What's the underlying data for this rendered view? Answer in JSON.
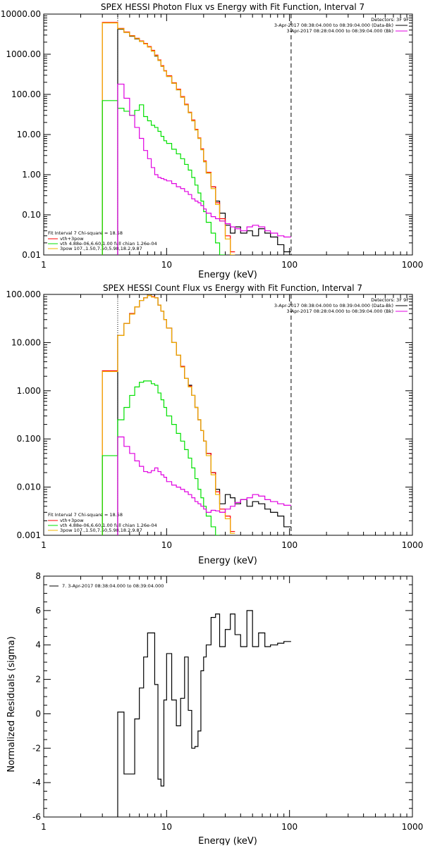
{
  "colors": {
    "background": "#ffffff",
    "axes": "#000000",
    "data": "#000000",
    "vth_spow": "#ff0000",
    "vth": "#00e000",
    "spow": "#f0b400",
    "background_spectrum": "#e000e0"
  },
  "chart_data": [
    {
      "type": "line",
      "title": "SPEX HESSI Photon Flux vs Energy with Fit Function, Interval 7",
      "xlabel": "Energy (keV)",
      "ylabel": "",
      "xscale": "log",
      "yscale": "log",
      "xlim": [
        1,
        1000
      ],
      "ylim": [
        0.01,
        10000
      ],
      "xticks": [
        {
          "v": 1,
          "label": "1"
        },
        {
          "v": 10,
          "label": "10"
        },
        {
          "v": 100,
          "label": "100"
        },
        {
          "v": 1000,
          "label": "1000"
        }
      ],
      "yticks": [
        {
          "v": 0.01,
          "label": "0.01"
        },
        {
          "v": 0.1,
          "label": "0.10"
        },
        {
          "v": 1,
          "label": "1.00"
        },
        {
          "v": 10,
          "label": "10.00"
        },
        {
          "v": 100,
          "label": "100.00"
        },
        {
          "v": 1000,
          "label": "1000.00"
        },
        {
          "v": 10000,
          "label": "10000.00"
        }
      ],
      "vlines": [
        {
          "x": 4,
          "style": "dotted"
        },
        {
          "x": 103,
          "style": "dashed"
        }
      ],
      "legend_top": {
        "position": "top-right",
        "header": "Detectors: 3F 9F",
        "entries": [
          {
            "label": "3-Apr-2017 08:38:04.000 to 08:39:04.000 (Data-Bk)",
            "color": "#000000"
          },
          {
            "label": "3-Apr-2017 08:28:04.000 to 08:39:04.000 (Bk)",
            "color": "#e000e0"
          }
        ]
      },
      "legend_bottom": {
        "position": "bottom-left",
        "header": "Fit Interval 7   Chi-square = 18.58",
        "entries": [
          {
            "label": "vth+3pow",
            "color": "#ff0000"
          },
          {
            "label": "vth 4.88e-06,6.60,1.00  full chian 1.26e-04",
            "color": "#00e000"
          },
          {
            "label": "3pow 107.,1.50,7.50,5.98,18.2,9.87",
            "color": "#f0b400"
          }
        ]
      },
      "edges": [
        3,
        4,
        4.5,
        5,
        5.5,
        6,
        6.5,
        7,
        7.5,
        8,
        8.5,
        9,
        9.5,
        10,
        11,
        12,
        13,
        14,
        15,
        16,
        17,
        18,
        19,
        20,
        21,
        23,
        25,
        27,
        30,
        33,
        36,
        40,
        45,
        50,
        56,
        63,
        70,
        80,
        90,
        103
      ],
      "series": [
        {
          "name": "Data-Bk",
          "color": "#000000",
          "width": 1.2,
          "values": [
            null,
            4200,
            3500,
            2800,
            2400,
            2100,
            1800,
            1500,
            1200,
            900,
            700,
            500,
            380,
            280,
            190,
            130,
            85,
            55,
            35,
            22,
            13,
            8,
            4.2,
            2.1,
            1.1,
            0.5,
            0.22,
            0.11,
            0.055,
            0.035,
            0.05,
            0.035,
            0.04,
            0.03,
            0.045,
            0.035,
            0.028,
            0.018,
            0.012
          ]
        },
        {
          "name": "vth+3pow",
          "color": "#ff0000",
          "width": 1.2,
          "values": [
            6200,
            4400,
            3600,
            2900,
            2500,
            2150,
            1850,
            1550,
            1250,
            950,
            720,
            520,
            390,
            290,
            195,
            135,
            88,
            57,
            36,
            23,
            13.5,
            8.2,
            4.4,
            2.2,
            1.15,
            0.5,
            0.2,
            0.08,
            0.03,
            0.012,
            null,
            null,
            null,
            null,
            null,
            null,
            null,
            null,
            null
          ]
        },
        {
          "name": "3pow",
          "color": "#f0b400",
          "width": 1.2,
          "values": [
            6000,
            4300,
            3500,
            2850,
            2450,
            2100,
            1800,
            1500,
            1200,
            920,
            700,
            500,
            380,
            280,
            190,
            130,
            85,
            55,
            35,
            22,
            13,
            8,
            4.2,
            2.1,
            1.1,
            0.45,
            0.18,
            0.07,
            0.025,
            0.01,
            null,
            null,
            null,
            null,
            null,
            null,
            null,
            null,
            null
          ]
        },
        {
          "name": "vth",
          "color": "#00e000",
          "width": 1.2,
          "values": [
            70,
            45,
            38,
            30,
            40,
            55,
            28,
            22,
            17,
            15,
            12,
            9,
            7,
            6,
            4.3,
            3.3,
            2.5,
            1.8,
            1.3,
            0.85,
            0.55,
            0.35,
            0.22,
            0.12,
            0.065,
            0.035,
            0.02,
            0.01,
            null,
            null,
            null,
            null,
            null,
            null,
            null,
            null,
            null,
            null,
            null
          ]
        },
        {
          "name": "Bk",
          "color": "#e000e0",
          "width": 1.2,
          "values": [
            null,
            180,
            80,
            30,
            15,
            8,
            4,
            2.5,
            1.5,
            1,
            0.85,
            0.8,
            0.75,
            0.7,
            0.6,
            0.5,
            0.45,
            0.38,
            0.32,
            0.25,
            0.22,
            0.2,
            0.17,
            0.14,
            0.11,
            0.09,
            0.08,
            0.07,
            0.06,
            0.05,
            0.045,
            0.04,
            0.05,
            0.055,
            0.05,
            0.04,
            0.035,
            0.03,
            0.028
          ]
        }
      ]
    },
    {
      "type": "line",
      "title": "SPEX HESSI Count Flux vs Energy with Fit Function, Interval 7",
      "xlabel": "Energy (keV)",
      "ylabel": "",
      "xscale": "log",
      "yscale": "log",
      "xlim": [
        1,
        1000
      ],
      "ylim": [
        0.001,
        100
      ],
      "xticks": [
        {
          "v": 1,
          "label": "1"
        },
        {
          "v": 10,
          "label": "10"
        },
        {
          "v": 100,
          "label": "100"
        },
        {
          "v": 1000,
          "label": "1000"
        }
      ],
      "yticks": [
        {
          "v": 0.001,
          "label": "0.001"
        },
        {
          "v": 0.01,
          "label": "0.010"
        },
        {
          "v": 0.1,
          "label": "0.100"
        },
        {
          "v": 1,
          "label": "1.000"
        },
        {
          "v": 10,
          "label": "10.000"
        },
        {
          "v": 100,
          "label": "100.000"
        }
      ],
      "vlines": [
        {
          "x": 4,
          "style": "dotted"
        },
        {
          "x": 103,
          "style": "dashed"
        }
      ],
      "legend_top": {
        "position": "top-right",
        "header": "Detectors: 3F 9F",
        "entries": [
          {
            "label": "3-Apr-2017 08:38:04.000 to 08:39:04.000 (Data-Bk)",
            "color": "#000000"
          },
          {
            "label": "3-Apr-2017 08:28:04.000 to 08:39:04.000 (Bk)",
            "color": "#e000e0"
          }
        ]
      },
      "legend_bottom": {
        "position": "bottom-left",
        "header": "Fit Interval 7   Chi-square = 18.58",
        "entries": [
          {
            "label": "vth+3pow",
            "color": "#ff0000"
          },
          {
            "label": "vth 4.88e-06,6.60,1.00  full chian 1.26e-04",
            "color": "#00e000"
          },
          {
            "label": "3pow 107.,1.50,7.50,5.98,18.2,9.87",
            "color": "#f0b400"
          }
        ]
      },
      "edges": [
        3,
        4,
        4.5,
        5,
        5.5,
        6,
        6.5,
        7,
        7.5,
        8,
        8.5,
        9,
        9.5,
        10,
        11,
        12,
        13,
        14,
        15,
        16,
        17,
        18,
        19,
        20,
        21,
        23,
        25,
        27,
        30,
        33,
        36,
        40,
        45,
        50,
        56,
        63,
        70,
        80,
        90,
        103
      ],
      "series": [
        {
          "name": "Data-Bk",
          "color": "#000000",
          "width": 1.2,
          "values": [
            null,
            14,
            25,
            40,
            55,
            75,
            85,
            95,
            100,
            85,
            60,
            45,
            30,
            20,
            10,
            5.5,
            3.2,
            1.8,
            1.3,
            0.8,
            0.45,
            0.25,
            0.15,
            0.09,
            0.05,
            0.02,
            0.009,
            0.0045,
            0.007,
            0.006,
            0.0045,
            0.0055,
            0.004,
            0.005,
            0.0045,
            0.0035,
            0.003,
            0.0025,
            0.0015
          ]
        },
        {
          "name": "vth+3pow",
          "color": "#ff0000",
          "width": 1.2,
          "values": [
            2.6,
            14,
            25,
            40,
            55,
            75,
            85,
            95,
            90,
            85,
            60,
            45,
            30,
            20,
            10,
            5.5,
            3.2,
            1.8,
            1.25,
            0.8,
            0.45,
            0.25,
            0.15,
            0.09,
            0.05,
            0.02,
            0.008,
            0.0035,
            0.0025,
            0.0012,
            null,
            null,
            null,
            null,
            null,
            null,
            null,
            null,
            null
          ]
        },
        {
          "name": "3pow",
          "color": "#f0b400",
          "width": 1.2,
          "values": [
            2.5,
            14,
            25,
            39,
            55,
            75,
            85,
            95,
            88,
            85,
            60,
            45,
            30,
            20,
            10,
            5.5,
            3.1,
            1.8,
            1.2,
            0.8,
            0.45,
            0.25,
            0.15,
            0.09,
            0.045,
            0.018,
            0.007,
            0.003,
            0.0022,
            0.0011,
            null,
            null,
            null,
            null,
            null,
            null,
            null,
            null,
            null
          ]
        },
        {
          "name": "vth",
          "color": "#00e000",
          "width": 1.2,
          "values": [
            0.045,
            0.25,
            0.45,
            0.8,
            1.2,
            1.5,
            1.6,
            1.6,
            1.4,
            1.3,
            0.9,
            0.65,
            0.45,
            0.3,
            0.2,
            0.13,
            0.09,
            0.06,
            0.04,
            0.025,
            0.015,
            0.009,
            0.006,
            0.004,
            0.0025,
            0.0015,
            0.001,
            null,
            null,
            null,
            null,
            null,
            null,
            null,
            null,
            null,
            null,
            null,
            null
          ]
        },
        {
          "name": "Bk",
          "color": "#e000e0",
          "width": 1.2,
          "values": [
            null,
            0.11,
            0.07,
            0.05,
            0.035,
            0.027,
            0.021,
            0.02,
            0.022,
            0.025,
            0.021,
            0.018,
            0.016,
            0.013,
            0.011,
            0.01,
            0.009,
            0.008,
            0.007,
            0.006,
            0.005,
            0.0045,
            0.004,
            0.0035,
            0.003,
            0.0033,
            0.0032,
            0.003,
            0.0035,
            0.004,
            0.0048,
            0.0055,
            0.006,
            0.007,
            0.0065,
            0.0055,
            0.005,
            0.0045,
            0.0042
          ]
        }
      ]
    },
    {
      "type": "line",
      "title": "",
      "xlabel": "Energy (keV)",
      "ylabel": "Normalized Residuals (sigma)",
      "xscale": "log",
      "yscale": "linear",
      "xlim": [
        1,
        1000
      ],
      "ylim": [
        -6,
        8
      ],
      "xticks": [
        {
          "v": 1,
          "label": "1"
        },
        {
          "v": 10,
          "label": "10"
        },
        {
          "v": 100,
          "label": "100"
        },
        {
          "v": 1000,
          "label": "1000"
        }
      ],
      "yticks": [
        {
          "v": -6,
          "label": "-6"
        },
        {
          "v": -4,
          "label": "-4"
        },
        {
          "v": -2,
          "label": "-2"
        },
        {
          "v": 0,
          "label": "0"
        },
        {
          "v": 2,
          "label": "2"
        },
        {
          "v": 4,
          "label": "4"
        },
        {
          "v": 6,
          "label": "6"
        },
        {
          "v": 8,
          "label": "8"
        }
      ],
      "legend": {
        "position": "top-left",
        "entries": [
          {
            "label": "7.  3-Apr-2017 08:38:04.000 to 08:39:04.000",
            "color": "#000000"
          }
        ]
      },
      "edges": [
        4,
        4.5,
        5,
        5.5,
        6,
        6.5,
        7,
        7.5,
        8,
        8.5,
        9,
        9.5,
        10,
        11,
        12,
        13,
        14,
        15,
        16,
        17,
        18,
        19,
        20,
        21,
        23,
        25,
        27,
        30,
        33,
        36,
        40,
        45,
        50,
        56,
        63,
        70,
        80,
        90,
        103
      ],
      "series": [
        {
          "name": "Residuals",
          "color": "#000000",
          "width": 1.2,
          "values": [
            0.1,
            -3.5,
            -3.5,
            -0.3,
            1.5,
            3.3,
            4.7,
            4.7,
            1.7,
            -3.8,
            -4.2,
            0.8,
            3.5,
            0.8,
            -0.7,
            0.9,
            3.3,
            0.2,
            -2,
            -1.9,
            -1,
            2.5,
            3.3,
            4,
            5.6,
            5.8,
            3.9,
            4.9,
            5.8,
            4.6,
            3.9,
            6,
            3.9,
            4.7,
            3.9,
            4,
            4.1,
            4.2
          ]
        }
      ],
      "first_segment_from": -6
    }
  ]
}
